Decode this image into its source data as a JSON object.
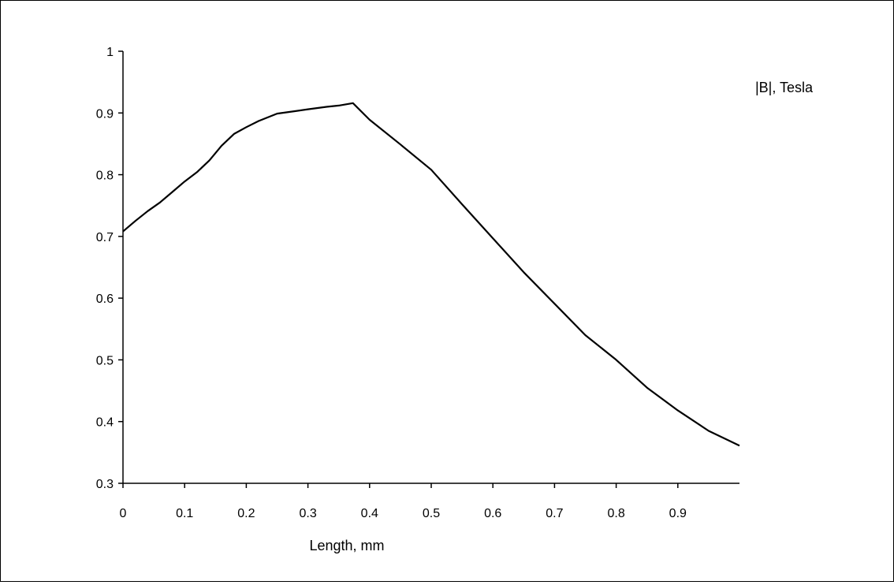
{
  "chart_data": {
    "type": "line",
    "title": "",
    "xlabel": "Length, mm",
    "ylabel": "",
    "xlim": [
      0,
      1
    ],
    "ylim": [
      0.3,
      1
    ],
    "grid": false,
    "legend_position": "top-right",
    "x_ticks": [
      0,
      0.1,
      0.2,
      0.3,
      0.4,
      0.5,
      0.6,
      0.7,
      0.8,
      0.9
    ],
    "x_tick_labels": [
      "0",
      "0.1",
      "0.2",
      "0.3",
      "0.4",
      "0.5",
      "0.6",
      "0.7",
      "0.8",
      "0.9"
    ],
    "y_ticks": [
      0.3,
      0.4,
      0.5,
      0.6,
      0.7,
      0.8,
      0.9,
      1
    ],
    "y_tick_labels": [
      "0.3",
      "0.4",
      "0.5",
      "0.6",
      "0.7",
      "0.8",
      "0.9",
      "1"
    ],
    "series": [
      {
        "name": "|B|, Tesla",
        "color": "#000000",
        "x": [
          0,
          0.02,
          0.04,
          0.06,
          0.08,
          0.1,
          0.12,
          0.14,
          0.16,
          0.18,
          0.2,
          0.22,
          0.25,
          0.28,
          0.3,
          0.33,
          0.35,
          0.373,
          0.4,
          0.45,
          0.5,
          0.55,
          0.6,
          0.65,
          0.7,
          0.75,
          0.8,
          0.85,
          0.9,
          0.95,
          1.0
        ],
        "y": [
          0.708,
          0.725,
          0.741,
          0.755,
          0.772,
          0.789,
          0.804,
          0.823,
          0.847,
          0.866,
          0.877,
          0.887,
          0.899,
          0.903,
          0.906,
          0.91,
          0.912,
          0.916,
          0.889,
          0.849,
          0.808,
          0.752,
          0.697,
          0.642,
          0.591,
          0.54,
          0.5,
          0.455,
          0.418,
          0.385,
          0.361
        ]
      }
    ]
  }
}
